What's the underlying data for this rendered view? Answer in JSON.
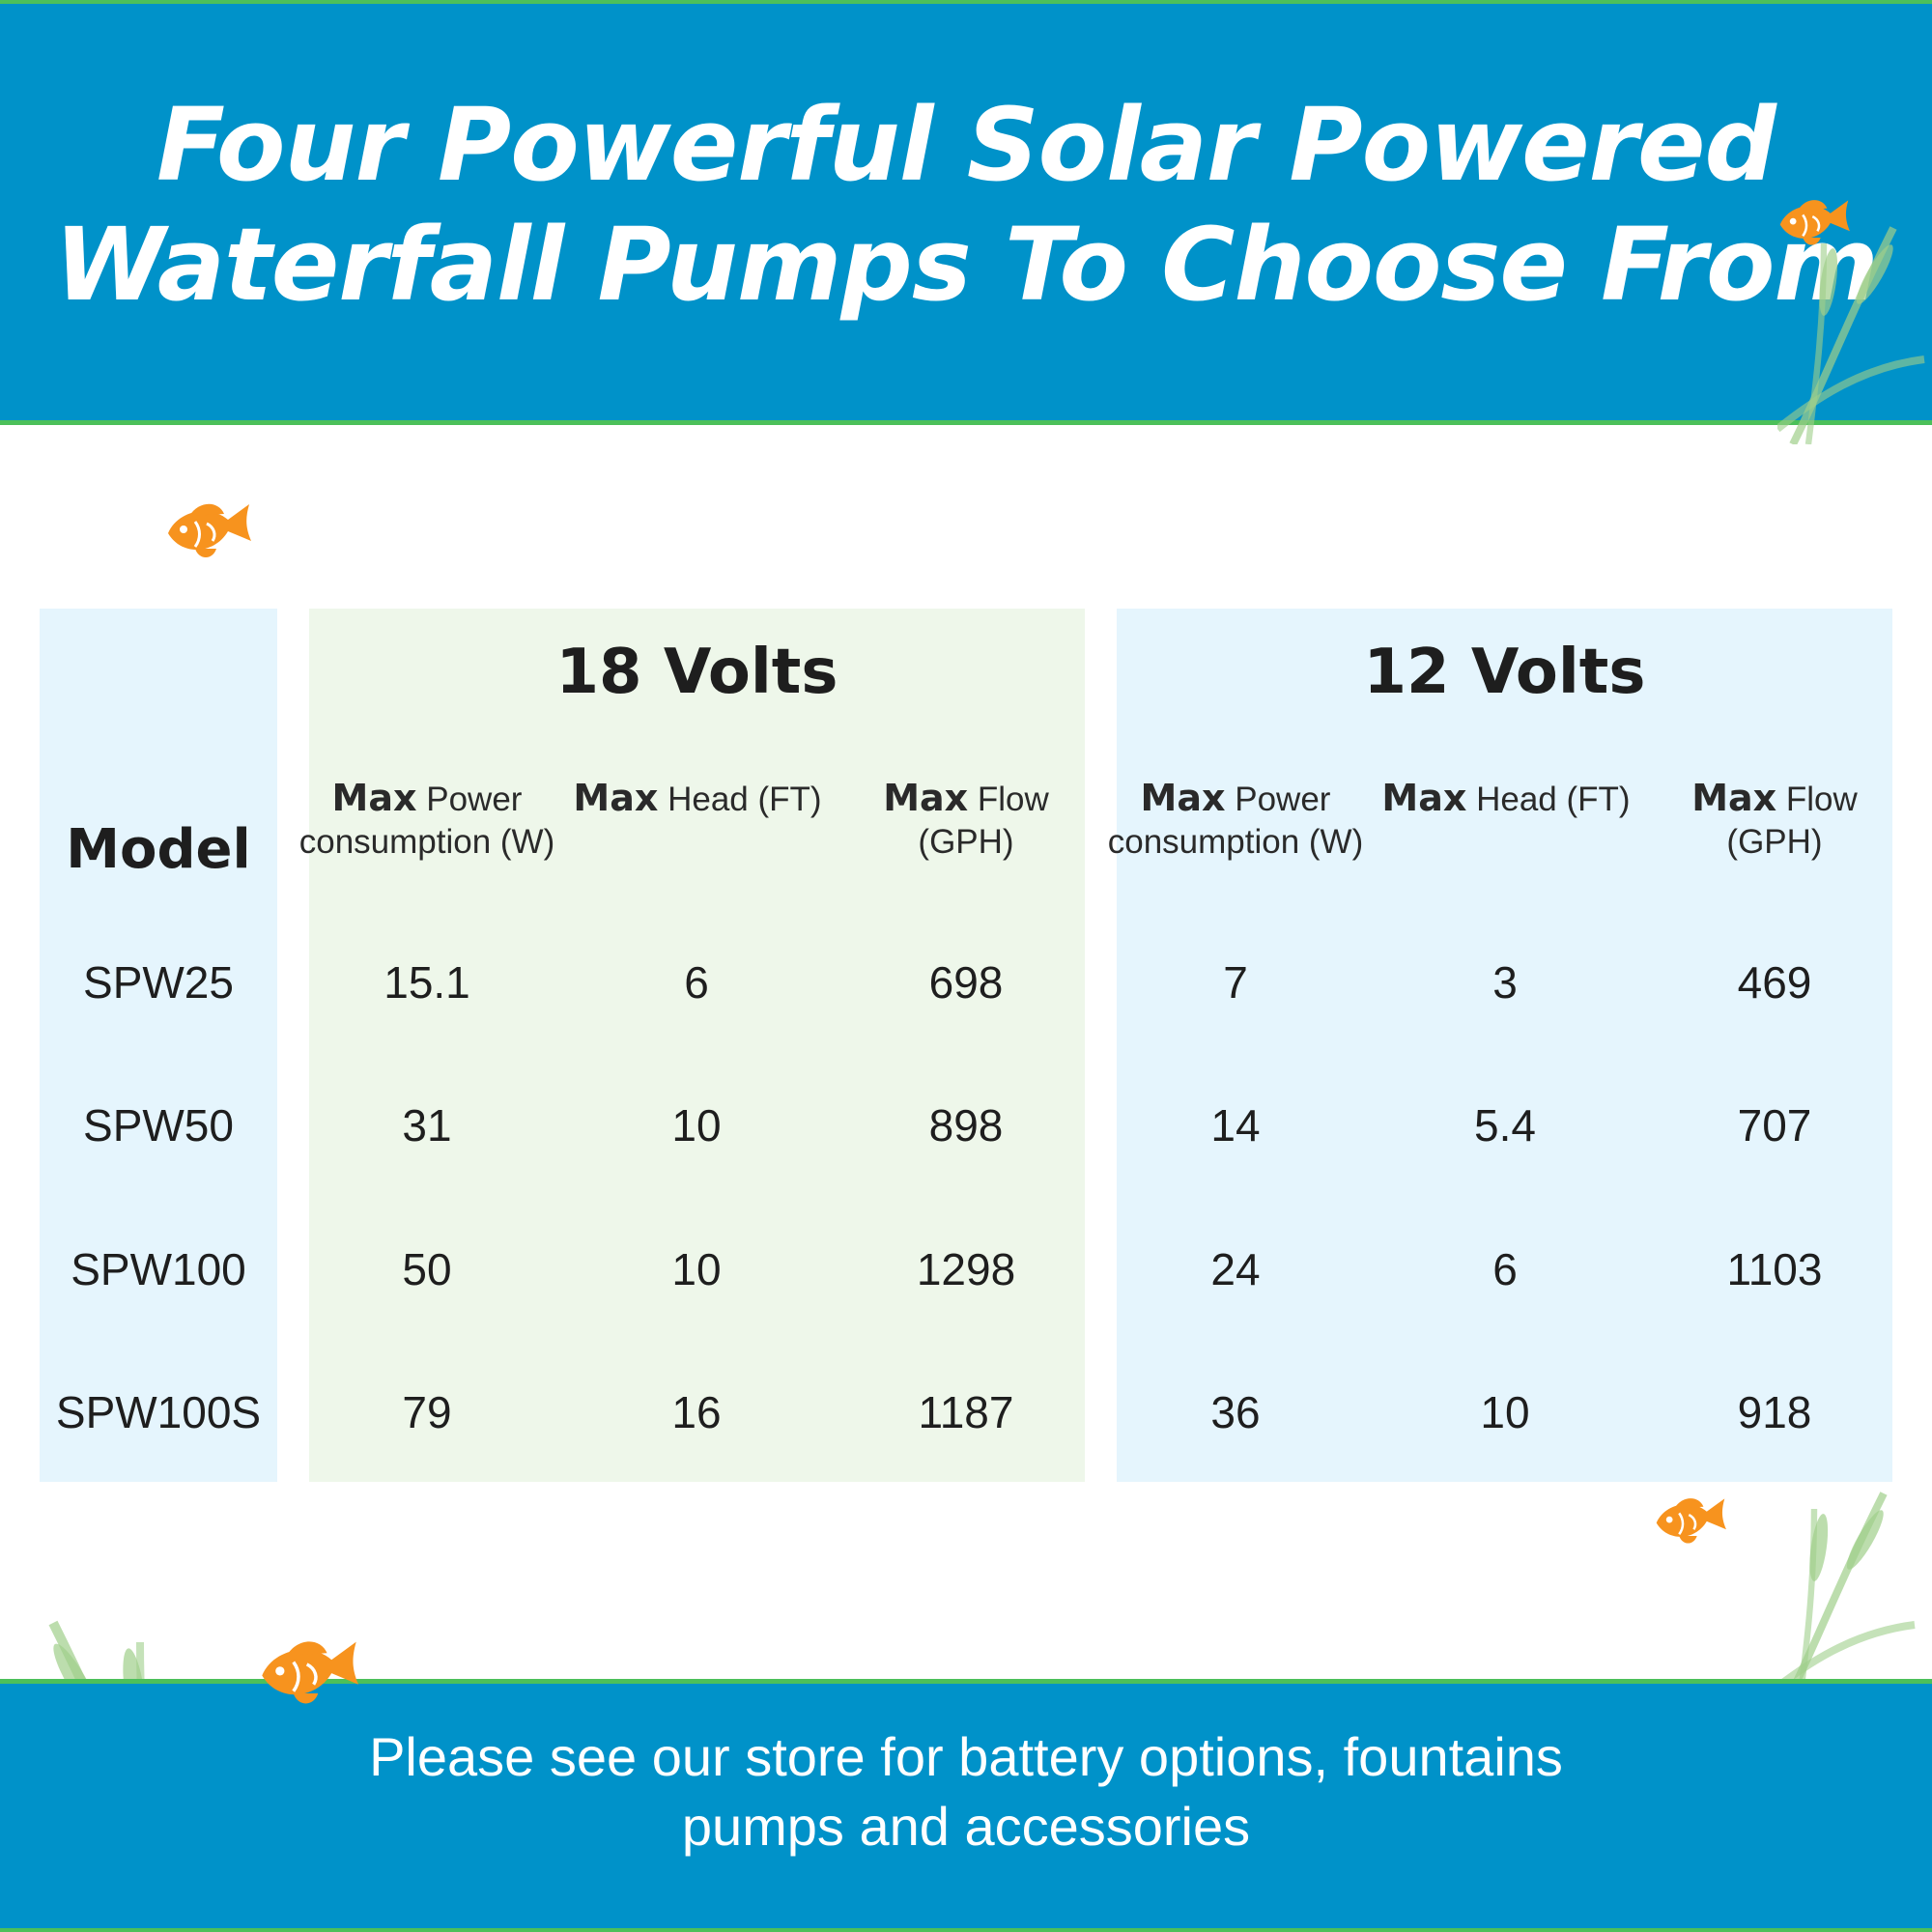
{
  "header": {
    "title_line1": "Four Powerful Solar Powered",
    "title_line2": "Waterfall Pumps To Choose From"
  },
  "table": {
    "model_header": "Model",
    "groups": [
      {
        "title": "18 Volts",
        "columns": [
          {
            "bold": "Max",
            "rest": " Power consumption (W)"
          },
          {
            "bold": "Max",
            "rest": " Head (FT)"
          },
          {
            "bold": "Max",
            "rest": " Flow (GPH)"
          }
        ]
      },
      {
        "title": "12 Volts",
        "columns": [
          {
            "bold": "Max",
            "rest": " Power consumption (W)"
          },
          {
            "bold": "Max",
            "rest": " Head (FT)"
          },
          {
            "bold": "Max",
            "rest": " Flow (GPH)"
          }
        ]
      }
    ],
    "rows": [
      {
        "model": "SPW25",
        "v18": [
          "15.1",
          "6",
          "698"
        ],
        "v12": [
          "7",
          "3",
          "469"
        ]
      },
      {
        "model": "SPW50",
        "v18": [
          "31",
          "10",
          "898"
        ],
        "v12": [
          "14",
          "5.4",
          "707"
        ]
      },
      {
        "model": "SPW100",
        "v18": [
          "50",
          "10",
          "1298"
        ],
        "v12": [
          "24",
          "6",
          "1103"
        ]
      },
      {
        "model": "SPW100S",
        "v18": [
          "79",
          "16",
          "1187"
        ],
        "v12": [
          "36",
          "10",
          "918"
        ]
      }
    ]
  },
  "footer": {
    "line1": "Please see our store for battery options, fountains",
    "line2": "pumps and accessories"
  },
  "decorations": {
    "fish_icon": "fish-icon",
    "reed_icon": "cattail-reed-icon",
    "colors": {
      "band_blue": "#0092c9",
      "band_edge_green": "#4cc05a",
      "fish_orange": "#f7931e",
      "panel_blue": "#e5f5fd",
      "panel_green": "#eef7ea"
    }
  }
}
